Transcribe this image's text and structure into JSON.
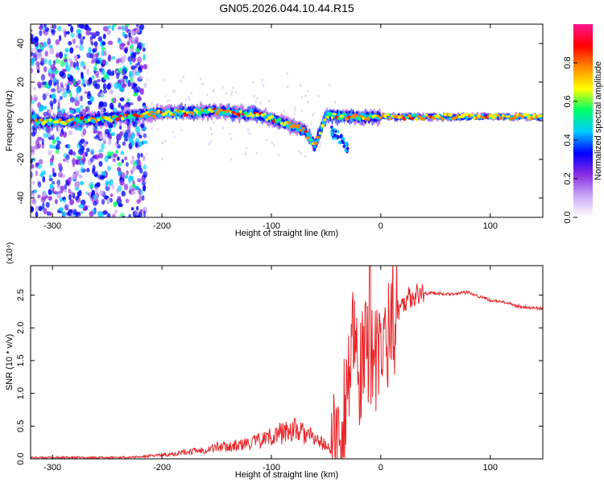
{
  "figure_title": "GN05.2026.044.10.44.R15",
  "chart_data": [
    {
      "type": "heatmap",
      "title": "",
      "xlabel": "Height of straight line (km)",
      "ylabel": "Frequency (Hz)",
      "xlim": [
        -320,
        148
      ],
      "ylim": [
        -50,
        50
      ],
      "xticks": [
        -300,
        -200,
        -100,
        0,
        100
      ],
      "yticks": [
        -40,
        -20,
        0,
        20,
        40
      ],
      "grid": false,
      "colorbar": {
        "label": "Normalized spectral amplitude",
        "range": [
          0.0,
          1.0
        ],
        "ticks": [
          0.0,
          0.2,
          0.4,
          0.6,
          0.8
        ],
        "colormap": [
          "#ffffff",
          "#c9a8f7",
          "#8a2be2",
          "#0000ff",
          "#00ccff",
          "#00ff66",
          "#ffff00",
          "#ff8800",
          "#ff0000",
          "#ff1493"
        ]
      },
      "ridge": {
        "description_values": [
          {
            "x": -315,
            "y": -1
          },
          {
            "x": -280,
            "y": 0
          },
          {
            "x": -250,
            "y": 1
          },
          {
            "x": -200,
            "y": 4
          },
          {
            "x": -150,
            "y": 5
          },
          {
            "x": -110,
            "y": 3
          },
          {
            "x": -90,
            "y": -1
          },
          {
            "x": -70,
            "y": -5
          },
          {
            "x": -60,
            "y": -13
          },
          {
            "x": -50,
            "y": 3
          },
          {
            "x": -30,
            "y": 2
          },
          {
            "x": 0,
            "y": 2
          },
          {
            "x": 50,
            "y": 2
          },
          {
            "x": 100,
            "y": 2
          },
          {
            "x": 148,
            "y": 2
          }
        ]
      }
    },
    {
      "type": "line",
      "title": "",
      "xlabel": "Height of straight line (km)",
      "ylabel": "SNR (10 * v/v)",
      "y_multiplier": "(x10⁴)",
      "xlim": [
        -320,
        148
      ],
      "ylim": [
        0.0,
        2.95
      ],
      "xticks": [
        -300,
        -200,
        -100,
        0,
        100
      ],
      "yticks": [
        0.0,
        0.5,
        1.0,
        1.5,
        2.0,
        2.5
      ],
      "grid": false,
      "series": [
        {
          "color": "#e8262a",
          "x": [
            -320,
            -300,
            -250,
            -220,
            -200,
            -180,
            -160,
            -150,
            -130,
            -110,
            -100,
            -90,
            -80,
            -70,
            -60,
            -50,
            -45,
            -40,
            -35,
            -30,
            -25,
            -20,
            -15,
            -10,
            -5,
            0,
            5,
            10,
            20,
            30,
            40,
            50,
            60,
            70,
            80,
            90,
            100,
            110,
            120,
            130,
            148
          ],
          "y": [
            0.02,
            0.02,
            0.02,
            0.03,
            0.06,
            0.1,
            0.14,
            0.18,
            0.2,
            0.28,
            0.35,
            0.4,
            0.45,
            0.38,
            0.3,
            0.2,
            0.12,
            0.25,
            0.6,
            1.3,
            1.7,
            1.2,
            1.5,
            1.8,
            1.4,
            1.6,
            1.9,
            2.1,
            2.4,
            2.5,
            2.53,
            2.53,
            2.52,
            2.52,
            2.55,
            2.48,
            2.42,
            2.4,
            2.35,
            2.32,
            2.29
          ]
        }
      ]
    }
  ]
}
